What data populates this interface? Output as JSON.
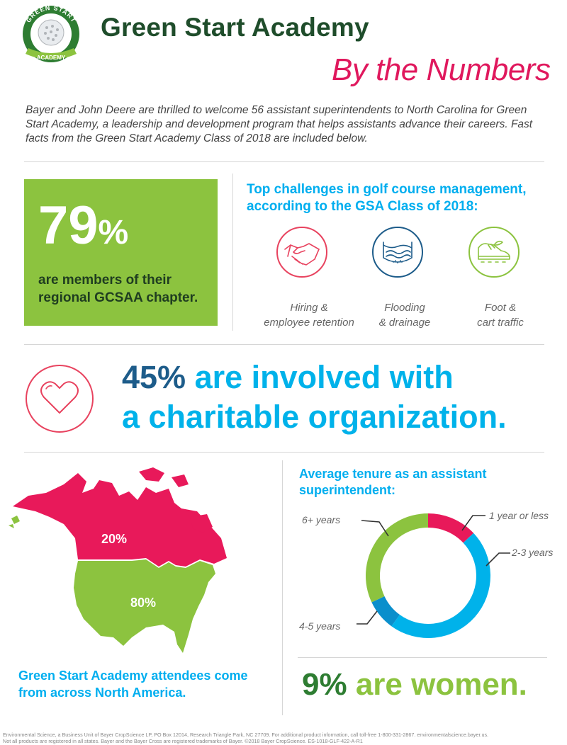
{
  "header": {
    "logo_text_top": "GREEN START",
    "logo_text_bottom": "ACADEMY",
    "title": "Green Start Academy",
    "subtitle": "By the Numbers",
    "intro": "Bayer and John Deere are thrilled to welcome 56 assistant superintendents to North Carolina for Green Start Academy, a leadership and development program that helps assistants advance their careers. Fast facts from the Green Start Academy Class of 2018 are included below."
  },
  "members": {
    "number": "79",
    "percent_sign": "%",
    "text": "are members of their regional GCSAA chapter."
  },
  "challenges": {
    "title": "Top challenges in golf course management, according to the GSA Class of 2018:",
    "items": [
      {
        "line1": "Hiring &",
        "line2": "employee retention",
        "icon": "handshake-icon",
        "color": "#e8435f"
      },
      {
        "line1": "Flooding",
        "line2": "& drainage",
        "icon": "water-icon",
        "color": "#1d5c8a"
      },
      {
        "line1": "Foot &",
        "line2": "cart traffic",
        "icon": "shoe-icon",
        "color": "#8cc33f"
      }
    ]
  },
  "charity": {
    "percent": "45%",
    "line1_rest": " are involved with",
    "line2": "a charitable organization."
  },
  "map": {
    "canada_label": "20%",
    "us_label": "80%",
    "caption": "Green Start Academy attendees come from across North America.",
    "canada_color": "#e8195a",
    "us_color": "#8cc33f"
  },
  "tenure": {
    "title": "Average tenure as an assistant superintendent:",
    "labels": {
      "one_or_less": "1 year or less",
      "two_three": "2-3 years",
      "four_five": "4-5 years",
      "six_plus": "6+ years"
    }
  },
  "chart_data": {
    "type": "pie",
    "categories": [
      "1 year or less",
      "2-3 years",
      "4-5 years",
      "6+ years"
    ],
    "values": [
      13,
      47,
      8,
      32
    ],
    "colors": [
      "#e8195a",
      "#00b2ea",
      "#0a8fcc",
      "#8cc33f"
    ],
    "title": "Average tenure as an assistant superintendent:"
  },
  "women": {
    "percent": "9%",
    "rest": " are women."
  },
  "footer": {
    "line1": "Environmental Science, a Business Unit of Bayer CropScience LP, PO Box 12014, Research Triangle Park, NC 27709. For additional product information, call toll-free 1-800-331-2867. environmentalscience.bayer.us.",
    "line2": "Not all products are registered in all states. Bayer and the Bayer Cross are registered trademarks of Bayer. ©2018 Bayer CropScience. ES-1018-GLF-422-A-R1"
  }
}
